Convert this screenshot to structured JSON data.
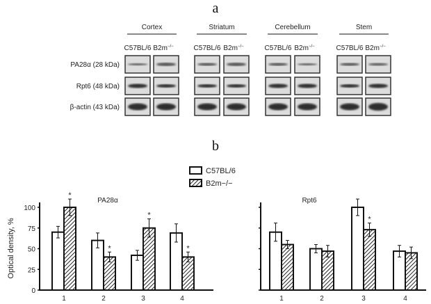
{
  "panel_a": {
    "label": "a",
    "groups": [
      "Cortex",
      "Striatum",
      "Cerebellum",
      "Stem"
    ],
    "sample_labels": [
      "C57BL/6",
      "B2m"
    ],
    "knockout_superscript": "−/−",
    "row_labels": [
      "PA28α (28 kDa)",
      "Rpt6 (48 kDa)",
      "β-actin (43 kDa)"
    ]
  },
  "panel_b": {
    "label": "b",
    "legend": [
      "C57BL/6",
      "B2m−/−"
    ],
    "significance_mark": "*"
  },
  "chart_data": [
    {
      "type": "bar",
      "title": "PA28α",
      "ylabel": "Optical density, %",
      "xlabel": "",
      "categories": [
        "1",
        "2",
        "3",
        "4"
      ],
      "ylim": [
        0,
        100
      ],
      "yticks": [
        0,
        25,
        50,
        75,
        100
      ],
      "legend_position": "top-right",
      "series": [
        {
          "name": "C57BL/6",
          "fill": "white",
          "values": [
            70,
            60,
            42,
            69
          ],
          "errors": [
            7,
            9,
            6,
            11
          ],
          "significant": [
            false,
            false,
            false,
            false
          ]
        },
        {
          "name": "B2m−/−",
          "fill": "hatched",
          "values": [
            100,
            40,
            75,
            40
          ],
          "errors": [
            10,
            6,
            11,
            6
          ],
          "significant": [
            true,
            true,
            true,
            true
          ]
        }
      ]
    },
    {
      "type": "bar",
      "title": "Rpt6",
      "ylabel": "",
      "xlabel": "",
      "categories": [
        "1",
        "2",
        "3",
        "4"
      ],
      "ylim": [
        0,
        100
      ],
      "yticks": [
        0,
        25,
        50,
        75,
        100
      ],
      "yticklabels_shown": false,
      "series": [
        {
          "name": "C57BL/6",
          "fill": "white",
          "values": [
            70,
            50,
            100,
            47
          ],
          "errors": [
            11,
            5,
            10,
            7
          ],
          "significant": [
            false,
            false,
            false,
            false
          ]
        },
        {
          "name": "B2m−/−",
          "fill": "hatched",
          "values": [
            55,
            47,
            73,
            45
          ],
          "errors": [
            5,
            7,
            8,
            7
          ],
          "significant": [
            false,
            false,
            true,
            false
          ]
        }
      ]
    }
  ]
}
